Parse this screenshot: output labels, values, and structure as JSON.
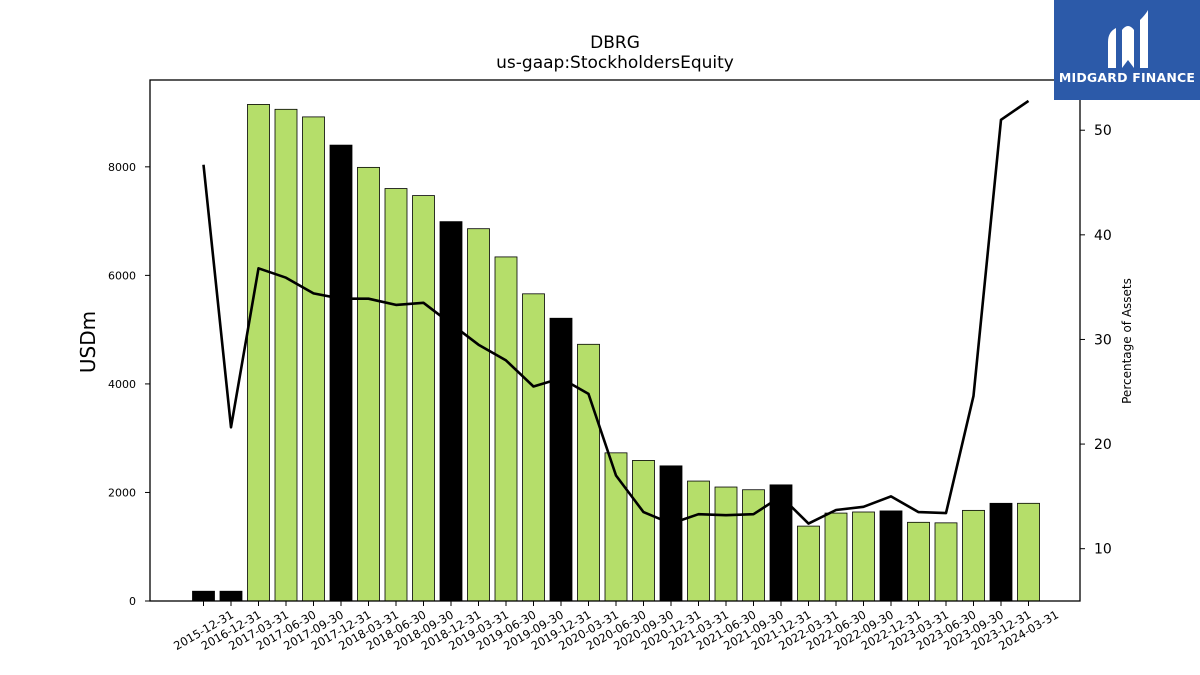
{
  "brand": {
    "name": "MIDGARD FINANCE",
    "background_color": "#2c5aa9",
    "icon": "midgard-logo-icon"
  },
  "chart_data": {
    "type": "bar",
    "title": "DBRG",
    "subtitle": "us-gaap:StockholdersEquity",
    "ylabel": "USDm",
    "y2label": "Percentage of Assets",
    "ylim": [
      0,
      9600
    ],
    "y2lim": [
      5,
      54.8
    ],
    "yticks": [
      0,
      2000,
      4000,
      6000,
      8000
    ],
    "y2ticks": [
      10,
      20,
      30,
      40,
      50
    ],
    "grid": false,
    "colors": {
      "quarter_bar": "#b5de6a",
      "year_end_bar": "#000000",
      "line": "#000000"
    },
    "categories": [
      "2015-12-31",
      "2016-12-31",
      "2017-03-31",
      "2017-06-30",
      "2017-09-30",
      "2017-12-31",
      "2018-03-31",
      "2018-06-30",
      "2018-09-30",
      "2018-12-31",
      "2019-03-31",
      "2019-06-30",
      "2019-09-30",
      "2019-12-31",
      "2020-03-31",
      "2020-06-30",
      "2020-09-30",
      "2020-12-31",
      "2021-03-31",
      "2021-06-30",
      "2021-09-30",
      "2021-12-31",
      "2022-03-31",
      "2022-06-30",
      "2022-09-30",
      "2022-12-31",
      "2023-03-31",
      "2023-06-30",
      "2023-09-30",
      "2023-12-31",
      "2024-03-31"
    ],
    "series": [
      {
        "type": "bar",
        "axis": "left",
        "values": [
          180,
          180,
          9150,
          9060,
          8920,
          8400,
          7990,
          7600,
          7470,
          6990,
          6860,
          6340,
          5660,
          5210,
          4730,
          2730,
          2590,
          2490,
          2210,
          2100,
          2050,
          2140,
          1380,
          1620,
          1640,
          1660,
          1450,
          1440,
          1670,
          1800,
          1800
        ]
      },
      {
        "type": "line",
        "axis": "right",
        "values": [
          46.7,
          21.6,
          36.8,
          35.9,
          34.4,
          33.9,
          33.9,
          33.3,
          33.5,
          31.5,
          29.5,
          28.0,
          25.5,
          26.3,
          24.8,
          17.0,
          13.5,
          12.4,
          13.3,
          13.2,
          13.3,
          15.0,
          12.4,
          13.7,
          14.0,
          15.0,
          13.5,
          13.4,
          24.6,
          51.0,
          52.8
        ]
      }
    ]
  }
}
